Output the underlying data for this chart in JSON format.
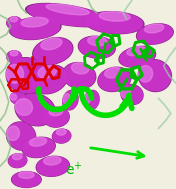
{
  "fig_width": 1.76,
  "fig_height": 1.89,
  "dpi": 100,
  "bg_color": "#f0efe0",
  "helix_color": "#cc33cc",
  "helix_dark": "#882288",
  "helix_light": "#ee88ee",
  "loop_color": "#88bb88",
  "loop_color2": "#99ccaa",
  "red_mol_color": "#dd0000",
  "green_mol_color": "#00bb00",
  "arrow_color": "#00dd00",
  "text_color": "#00bb00",
  "e_fontsize": 10,
  "helices": [
    [
      0.38,
      0.92,
      0.45,
      0.1,
      -8
    ],
    [
      0.2,
      0.85,
      0.28,
      0.11,
      5
    ],
    [
      0.65,
      0.88,
      0.32,
      0.11,
      -3
    ],
    [
      0.88,
      0.82,
      0.2,
      0.1,
      8
    ],
    [
      0.3,
      0.73,
      0.22,
      0.13,
      12
    ],
    [
      0.55,
      0.75,
      0.2,
      0.11,
      -5
    ],
    [
      0.78,
      0.7,
      0.2,
      0.1,
      10
    ],
    [
      0.88,
      0.6,
      0.16,
      0.18,
      80
    ],
    [
      0.15,
      0.6,
      0.18,
      0.22,
      82
    ],
    [
      0.28,
      0.58,
      0.2,
      0.14,
      15
    ],
    [
      0.45,
      0.6,
      0.18,
      0.13,
      -8
    ],
    [
      0.65,
      0.58,
      0.18,
      0.12,
      10
    ],
    [
      0.2,
      0.42,
      0.16,
      0.22,
      78
    ],
    [
      0.32,
      0.38,
      0.14,
      0.1,
      5
    ],
    [
      0.12,
      0.28,
      0.14,
      0.16,
      72
    ],
    [
      0.22,
      0.22,
      0.18,
      0.1,
      8
    ],
    [
      0.3,
      0.12,
      0.18,
      0.1,
      5
    ],
    [
      0.15,
      0.05,
      0.16,
      0.08,
      0
    ]
  ],
  "small_helices": [
    [
      0.08,
      0.7,
      0.08,
      0.06,
      0
    ],
    [
      0.1,
      0.48,
      0.06,
      0.08,
      75
    ],
    [
      0.4,
      0.47,
      0.1,
      0.08,
      70
    ],
    [
      0.52,
      0.47,
      0.1,
      0.08,
      72
    ],
    [
      0.35,
      0.28,
      0.1,
      0.07,
      5
    ],
    [
      0.1,
      0.15,
      0.1,
      0.07,
      5
    ],
    [
      0.08,
      0.88,
      0.08,
      0.06,
      5
    ],
    [
      0.75,
      0.5,
      0.1,
      0.12,
      78
    ]
  ]
}
